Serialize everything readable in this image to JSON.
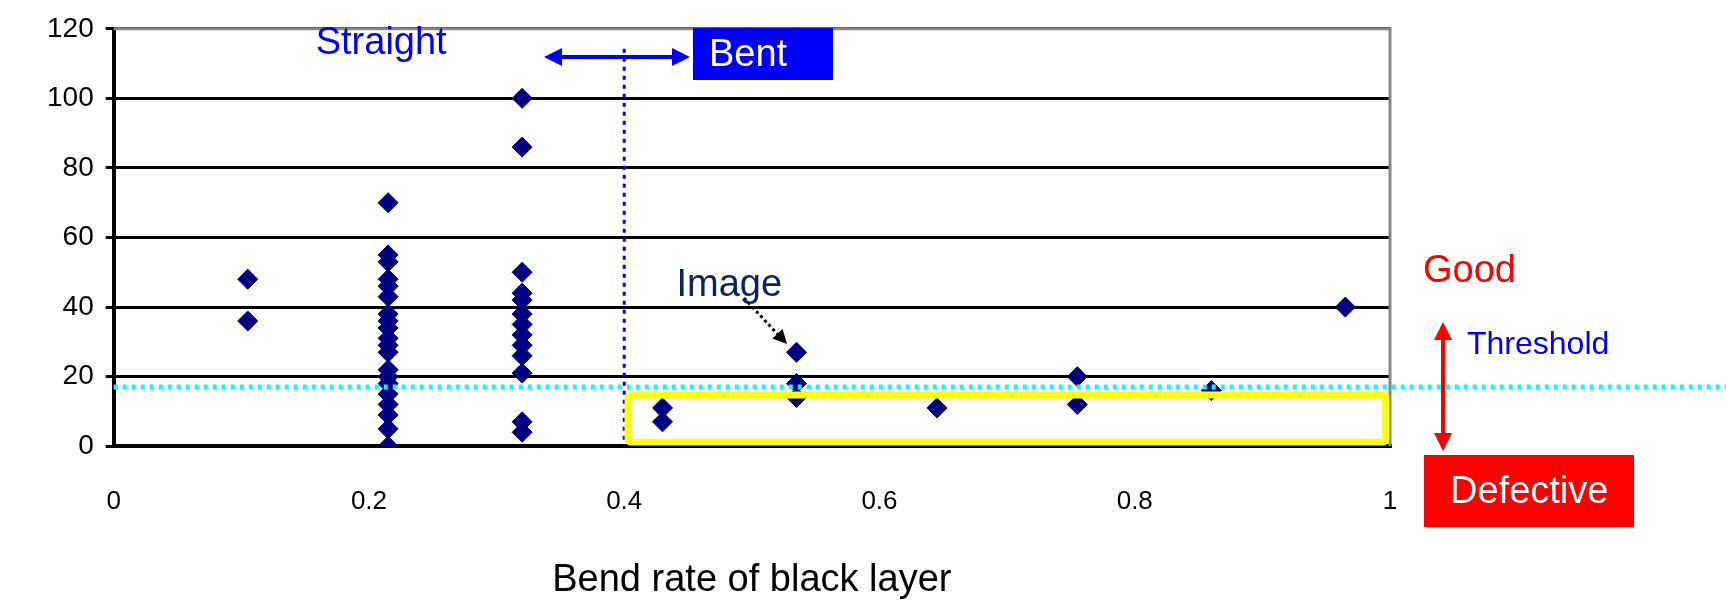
{
  "chart_data": {
    "type": "scatter",
    "xlabel": "Bend rate of black layer",
    "x": [
      0.105,
      0.105,
      0.215,
      0.215,
      0.215,
      0.215,
      0.215,
      0.215,
      0.215,
      0.215,
      0.215,
      0.215,
      0.215,
      0.215,
      0.215,
      0.215,
      0.215,
      0.215,
      0.215,
      0.215,
      0.215,
      0.215,
      0.32,
      0.32,
      0.32,
      0.32,
      0.32,
      0.32,
      0.32,
      0.32,
      0.32,
      0.32,
      0.32,
      0.32,
      0.32,
      0.43,
      0.43,
      0.535,
      0.535,
      0.535,
      0.645,
      0.755,
      0.755,
      0.86,
      0.965
    ],
    "series": [
      {
        "color": "#000080",
        "values": [
          48,
          36,
          70,
          55,
          53,
          48,
          46,
          43,
          38,
          36,
          34,
          31,
          29,
          27,
          22,
          20,
          18,
          15,
          12,
          9,
          5,
          0,
          100,
          86,
          50,
          44,
          42,
          38,
          35,
          32,
          29,
          26,
          21,
          7,
          4,
          11,
          7,
          27,
          18,
          14,
          11,
          20,
          12,
          16,
          40
        ]
      }
    ],
    "xlim": [
      0,
      1
    ],
    "xticks": [
      0,
      0.2,
      0.4,
      0.6,
      0.8,
      1
    ],
    "ylim": [
      0,
      120
    ],
    "yticks": [
      0,
      20,
      40,
      60,
      80,
      100,
      120
    ],
    "grid": "y",
    "marker": "diamond",
    "legend": false,
    "ref_lines": [
      {
        "axis": "y",
        "value": 17,
        "label": "Threshold",
        "color": "#00ffff",
        "line_style": "dotted"
      },
      {
        "axis": "x",
        "value": 0.4,
        "color": "#0000ff",
        "line_style": "dotted"
      }
    ],
    "annotations": [
      "Straight",
      "Bent",
      {
        "text": "Image",
        "x": 0.535,
        "y": 27
      },
      "Good",
      "Defective"
    ]
  }
}
